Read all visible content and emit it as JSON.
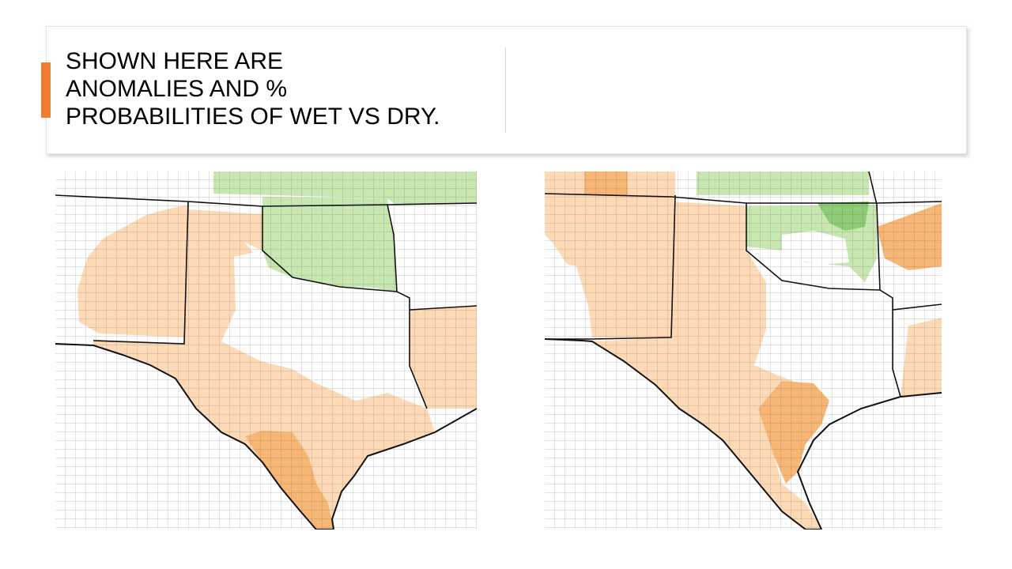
{
  "slide": {
    "title_lines": [
      "SHOWN HERE ARE",
      "ANOMALIES AND %",
      "PROBABILITIES OF WET VS DRY."
    ],
    "accent_color": "#ED7D31"
  },
  "maps": [
    {
      "id": "anomaly",
      "region": "Texas, Oklahoma and neighboring states",
      "shading": {
        "Oklahoma (northern two-thirds)": "wet",
        "Kansas (southern counties)": "wet",
        "Texas Panhandle": "dry",
        "New Mexico (eastern)": "dry",
        "West Texas": "dry",
        "South Texas": "dry-strong",
        "Louisiana (western)": "dry",
        "North-Central / East Texas": "neutral",
        "Southwestern Oklahoma": "neutral"
      }
    },
    {
      "id": "probability",
      "region": "Texas, Oklahoma and neighboring states",
      "shading": {
        "Kansas (south-central)": "wet",
        "Northern Oklahoma": "wet",
        "North-Central Oklahoma": "wet-strong",
        "Central Oklahoma": "neutral",
        "Texas Panhandle": "dry",
        "New Mexico (eastern)": "dry",
        "West / Southwest Texas": "dry",
        "Central Texas Coast": "dry-strong",
        "Arkansas (western)": "dry-strong",
        "Louisiana (western)": "dry",
        "North / East Texas": "neutral"
      }
    }
  ],
  "colors": {
    "dry": "#FDD9B5",
    "dry_strong": "#F8B675",
    "wet": "#C8E6B0",
    "wet_strong": "#8DCB74",
    "neutral": "#FFFFFF",
    "county_line": "#555555",
    "state_line": "#111111"
  }
}
